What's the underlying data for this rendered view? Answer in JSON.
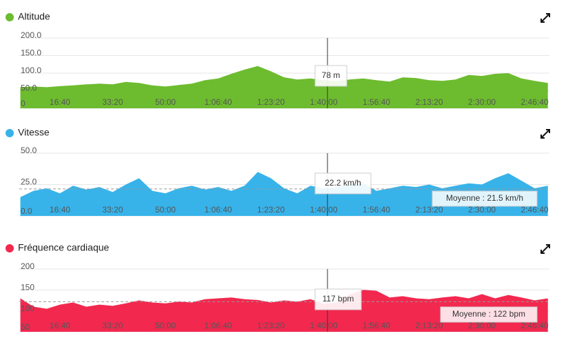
{
  "chart_data": [
    {
      "type": "area",
      "title": "Altitude",
      "color": "#6dbc2f",
      "x": [
        250,
        500,
        750,
        1000,
        1250,
        1500,
        1750,
        2000,
        2250,
        2500,
        2750,
        3000,
        3250,
        3500,
        3750,
        4000,
        4250,
        4500,
        4750,
        5000,
        5250,
        5500,
        5750,
        6000,
        6250,
        6500,
        6750,
        7000,
        7250,
        7500,
        7750,
        8000,
        8250,
        8500,
        8750,
        9000,
        9250,
        9500,
        9750,
        10000,
        10250
      ],
      "values": [
        60,
        62,
        60,
        63,
        65,
        68,
        70,
        68,
        75,
        72,
        65,
        62,
        66,
        70,
        80,
        85,
        98,
        110,
        120,
        105,
        88,
        82,
        85,
        80,
        78,
        82,
        85,
        80,
        76,
        88,
        86,
        80,
        78,
        82,
        95,
        92,
        98,
        100,
        85,
        78,
        72
      ],
      "xlim": [
        230,
        10280
      ],
      "ylim": [
        0,
        200
      ],
      "yticks": [
        {
          "value": 0,
          "label": "0"
        },
        {
          "value": 50,
          "label": "50.0"
        },
        {
          "value": 100,
          "label": "100.0"
        },
        {
          "value": 150,
          "label": "150.0"
        },
        {
          "value": 200,
          "label": "200.0"
        }
      ],
      "xticks": [
        {
          "value": 1000,
          "label": "16:40"
        },
        {
          "value": 2000,
          "label": "33:20"
        },
        {
          "value": 3000,
          "label": "50:00"
        },
        {
          "value": 4000,
          "label": "1:06:40"
        },
        {
          "value": 5000,
          "label": "1:23:20"
        },
        {
          "value": 6000,
          "label": "1:40:00"
        },
        {
          "value": 7000,
          "label": "1:56:40"
        },
        {
          "value": 8000,
          "label": "2:13:20"
        },
        {
          "value": 9000,
          "label": "2:30:00"
        },
        {
          "value": 10000,
          "label": "2:46:40"
        }
      ],
      "grid": true,
      "cursor": {
        "x": 6072,
        "value": 78,
        "label": "78 m"
      }
    },
    {
      "type": "area",
      "title": "Vitesse",
      "color": "#37b3ea",
      "x": [
        250,
        500,
        750,
        1000,
        1250,
        1500,
        1750,
        2000,
        2250,
        2500,
        2750,
        3000,
        3250,
        3500,
        3750,
        4000,
        4250,
        4500,
        4750,
        5000,
        5250,
        5500,
        5750,
        6000,
        6250,
        6500,
        6750,
        7000,
        7250,
        7500,
        7750,
        8000,
        8250,
        8500,
        8750,
        9000,
        9250,
        9500,
        9750,
        10000,
        10250
      ],
      "values": [
        15,
        20,
        22,
        18,
        24,
        21,
        23,
        19,
        25,
        30,
        20,
        18,
        22,
        24,
        21,
        23,
        20,
        24,
        35,
        30,
        22,
        18,
        24,
        22,
        23,
        25,
        26,
        20,
        22,
        24,
        23,
        25,
        22,
        24,
        26,
        25,
        30,
        34,
        28,
        22,
        24
      ],
      "xlim": [
        230,
        10280
      ],
      "ylim": [
        0,
        50
      ],
      "yticks": [
        {
          "value": 0,
          "label": "0.0"
        },
        {
          "value": 25,
          "label": "25.0"
        },
        {
          "value": 50,
          "label": "50.0"
        }
      ],
      "xticks": [
        {
          "value": 1000,
          "label": "16:40"
        },
        {
          "value": 2000,
          "label": "33:20"
        },
        {
          "value": 3000,
          "label": "50:00"
        },
        {
          "value": 4000,
          "label": "1:06:40"
        },
        {
          "value": 5000,
          "label": "1:23:20"
        },
        {
          "value": 6000,
          "label": "1:40:00"
        },
        {
          "value": 7000,
          "label": "1:56:40"
        },
        {
          "value": 8000,
          "label": "2:13:20"
        },
        {
          "value": 9000,
          "label": "2:30:00"
        },
        {
          "value": 10000,
          "label": "2:46:40"
        }
      ],
      "grid": true,
      "cursor": {
        "x": 6072,
        "value": 22.2,
        "label": "22.2 km/h"
      },
      "average": {
        "value": 21.5,
        "label": "Moyenne : 21.5 km/h"
      }
    },
    {
      "type": "area",
      "title": "Fréquence cardiaque",
      "color": "#f2284f",
      "x": [
        250,
        500,
        750,
        1000,
        1250,
        1500,
        1750,
        2000,
        2250,
        2500,
        2750,
        3000,
        3250,
        3500,
        3750,
        4000,
        4250,
        4500,
        4750,
        5000,
        5250,
        5500,
        5750,
        6000,
        6250,
        6500,
        6750,
        7000,
        7250,
        7500,
        7750,
        8000,
        8250,
        8500,
        8750,
        9000,
        9250,
        9500,
        9750,
        10000,
        10250
      ],
      "values": [
        130,
        110,
        105,
        115,
        120,
        110,
        115,
        112,
        118,
        125,
        120,
        118,
        122,
        120,
        128,
        130,
        132,
        128,
        126,
        120,
        125,
        122,
        128,
        117,
        120,
        140,
        150,
        148,
        132,
        135,
        130,
        128,
        132,
        135,
        130,
        140,
        130,
        138,
        132,
        125,
        130
      ],
      "xlim": [
        230,
        10280
      ],
      "ylim": [
        50,
        200
      ],
      "yticks": [
        {
          "value": 50,
          "label": "50"
        },
        {
          "value": 100,
          "label": "100"
        },
        {
          "value": 150,
          "label": "150"
        },
        {
          "value": 200,
          "label": "200"
        }
      ],
      "xticks": [
        {
          "value": 1000,
          "label": "16:40"
        },
        {
          "value": 2000,
          "label": "33:20"
        },
        {
          "value": 3000,
          "label": "50:00"
        },
        {
          "value": 4000,
          "label": "1:06:40"
        },
        {
          "value": 5000,
          "label": "1:23:20"
        },
        {
          "value": 6000,
          "label": "1:40:00"
        },
        {
          "value": 7000,
          "label": "1:56:40"
        },
        {
          "value": 8000,
          "label": "2:13:20"
        },
        {
          "value": 9000,
          "label": "2:30:00"
        },
        {
          "value": 10000,
          "label": "2:46:40"
        }
      ],
      "grid": true,
      "cursor": {
        "x": 6072,
        "value": 117,
        "label": "117 bpm"
      },
      "average": {
        "value": 122,
        "label": "Moyenne : 122 bpm"
      }
    }
  ]
}
